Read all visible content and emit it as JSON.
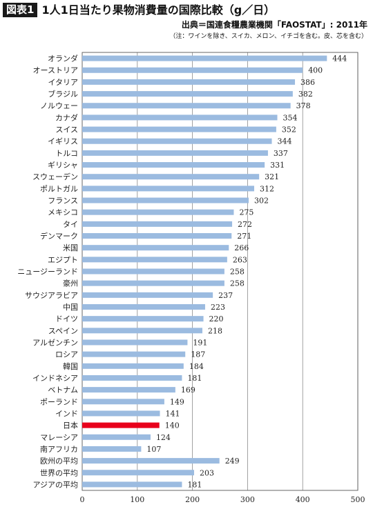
{
  "header": {
    "badge": "図表1",
    "title": "1人1日当たり果物消費量の国際比較（g／日）",
    "source": "出典＝国連食糧農業機関「FAOSTAT」: 2011年",
    "note": "（注：ワインを除き、スイカ、メロン、イチゴを含む。皮、芯を含む）"
  },
  "chart_data": {
    "type": "bar",
    "orientation": "horizontal",
    "title": "1人1日当たり果物消費量の国際比較（g／日）",
    "categories": [
      "オランダ",
      "オーストリア",
      "イタリア",
      "ブラジル",
      "ノルウェー",
      "カナダ",
      "スイス",
      "イギリス",
      "トルコ",
      "ギリシャ",
      "スウェーデン",
      "ポルトガル",
      "フランス",
      "メキシコ",
      "タイ",
      "デンマーク",
      "米国",
      "エジプト",
      "ニュージーランド",
      "豪州",
      "サウジアラビア",
      "中国",
      "ドイツ",
      "スペイン",
      "アルゼンチン",
      "ロシア",
      "韓国",
      "インドネシア",
      "ベトナム",
      "ポーランド",
      "インド",
      "日本",
      "マレーシア",
      "南アフリカ",
      "欧州の平均",
      "世界の平均",
      "アジアの平均"
    ],
    "values": [
      444,
      400,
      386,
      382,
      378,
      354,
      352,
      344,
      337,
      331,
      321,
      312,
      302,
      275,
      272,
      271,
      266,
      263,
      258,
      258,
      237,
      223,
      220,
      218,
      191,
      187,
      184,
      181,
      169,
      149,
      141,
      140,
      124,
      107,
      249,
      203,
      181
    ],
    "highlight": "日本",
    "colors": {
      "bar": "#9bbbe0",
      "highlight": "#e8001c"
    },
    "xlim": [
      0,
      500
    ],
    "xticks": [
      0,
      100,
      200,
      300,
      400,
      500
    ],
    "grid": "vertical"
  }
}
